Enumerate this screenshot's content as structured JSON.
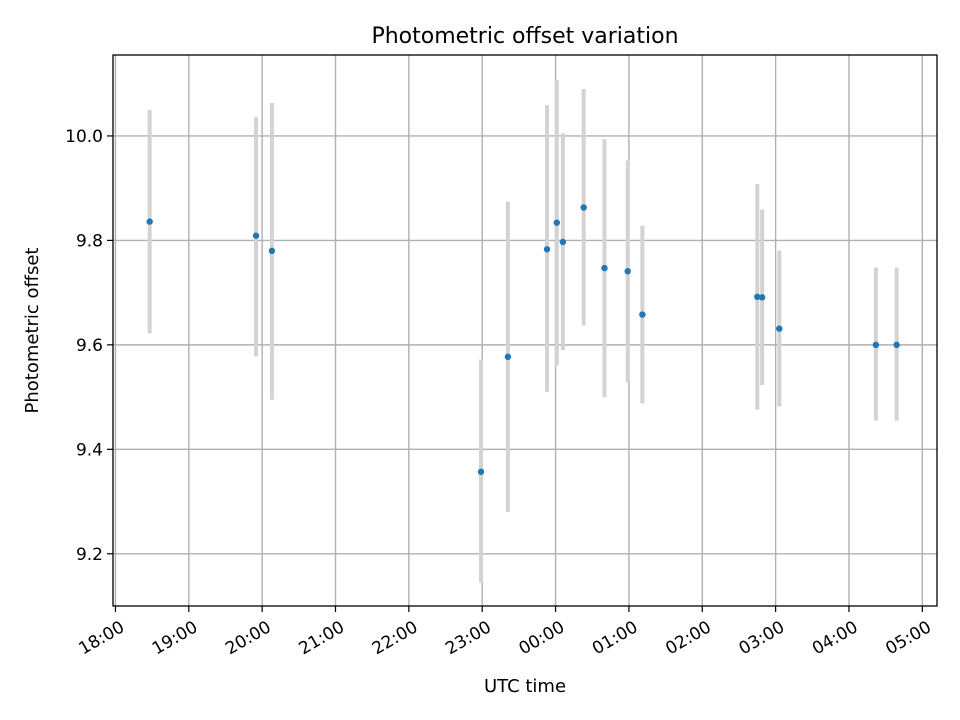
{
  "chart_data": {
    "type": "scatter",
    "title": "Photometric offset variation",
    "xlabel": "UTC time",
    "ylabel": "Photometric offset",
    "x_axis": "time",
    "xlim": [
      "17:58",
      "05:12"
    ],
    "ylim": [
      9.1,
      10.155
    ],
    "xticks": [
      "18:00",
      "19:00",
      "20:00",
      "21:00",
      "22:00",
      "23:00",
      "00:00",
      "01:00",
      "02:00",
      "03:00",
      "04:00",
      "05:00"
    ],
    "yticks": [
      9.2,
      9.4,
      9.6,
      9.8,
      10.0
    ],
    "ytick_labels": [
      "9.2",
      "9.4",
      "9.6",
      "9.8",
      "10.0"
    ],
    "grid": true,
    "marker_color": "#1f77b4",
    "errorbar_color": "#d3d3d3",
    "points": [
      {
        "time": "18:28",
        "y": 9.836,
        "ylow": 9.622,
        "yhigh": 10.05
      },
      {
        "time": "19:55",
        "y": 9.809,
        "ylow": 9.578,
        "yhigh": 10.036
      },
      {
        "time": "20:08",
        "y": 9.78,
        "ylow": 9.495,
        "yhigh": 10.063
      },
      {
        "time": "22:59",
        "y": 9.357,
        "ylow": 9.145,
        "yhigh": 9.572
      },
      {
        "time": "23:21",
        "y": 9.577,
        "ylow": 9.28,
        "yhigh": 9.874
      },
      {
        "time": "23:53",
        "y": 9.783,
        "ylow": 9.51,
        "yhigh": 10.059
      },
      {
        "time": "00:01",
        "y": 9.834,
        "ylow": 9.561,
        "yhigh": 10.107
      },
      {
        "time": "00:06",
        "y": 9.797,
        "ylow": 9.59,
        "yhigh": 10.005
      },
      {
        "time": "00:23",
        "y": 9.863,
        "ylow": 9.637,
        "yhigh": 10.09
      },
      {
        "time": "00:40",
        "y": 9.747,
        "ylow": 9.5,
        "yhigh": 9.994
      },
      {
        "time": "00:59",
        "y": 9.741,
        "ylow": 9.528,
        "yhigh": 9.953
      },
      {
        "time": "01:11",
        "y": 9.658,
        "ylow": 9.488,
        "yhigh": 9.828
      },
      {
        "time": "02:45",
        "y": 9.692,
        "ylow": 9.476,
        "yhigh": 9.908
      },
      {
        "time": "02:49",
        "y": 9.691,
        "ylow": 9.523,
        "yhigh": 9.859
      },
      {
        "time": "03:03",
        "y": 9.631,
        "ylow": 9.482,
        "yhigh": 9.781
      },
      {
        "time": "04:22",
        "y": 9.6,
        "ylow": 9.455,
        "yhigh": 9.748
      },
      {
        "time": "04:39",
        "y": 9.6,
        "ylow": 9.455,
        "yhigh": 9.748
      }
    ]
  }
}
